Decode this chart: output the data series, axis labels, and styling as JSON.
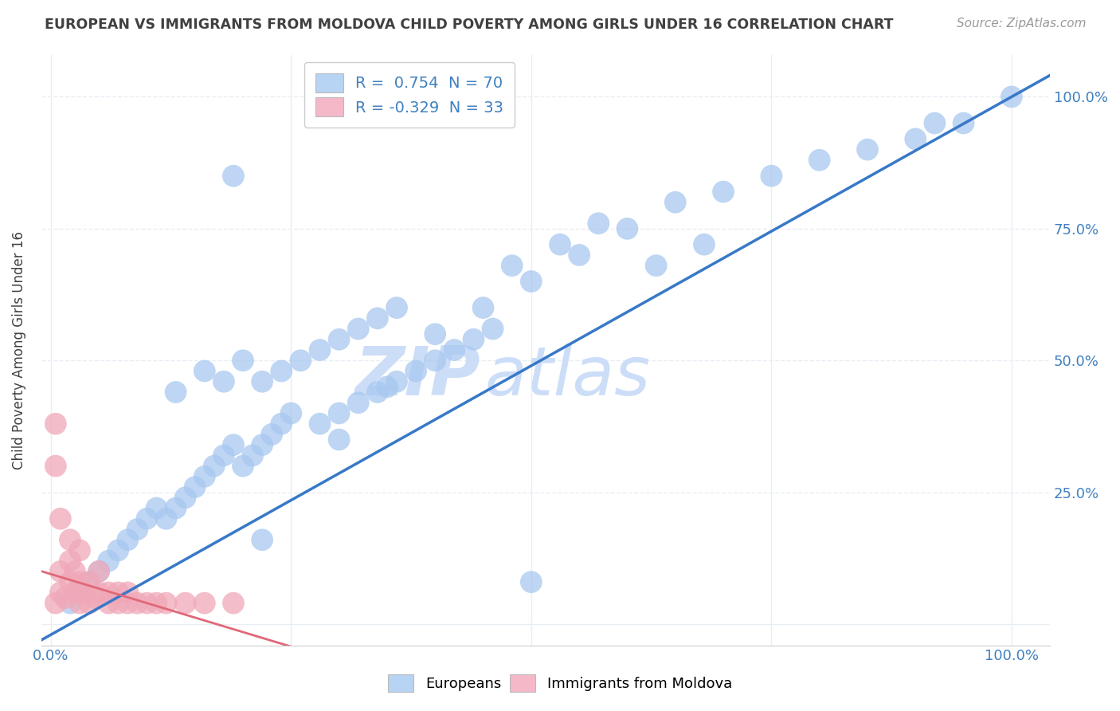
{
  "title": "EUROPEAN VS IMMIGRANTS FROM MOLDOVA CHILD POVERTY AMONG GIRLS UNDER 16 CORRELATION CHART",
  "source": "Source: ZipAtlas.com",
  "ylabel": "Child Poverty Among Girls Under 16",
  "r_european": 0.754,
  "n_european": 70,
  "r_moldova": -0.329,
  "n_moldova": 33,
  "blue_color": "#a8c8f0",
  "pink_color": "#f0a8b8",
  "blue_line_color": "#3878c8",
  "pink_line_color": "#e06878",
  "legend_blue_fill": "#b8d4f4",
  "legend_pink_fill": "#f4b8c8",
  "watermark_zip": "ZIP",
  "watermark_atlas": "atlas",
  "watermark_color": "#ccddf8",
  "background_color": "#ffffff",
  "title_color": "#404040",
  "axis_label_color": "#4080c0",
  "grid_color": "#e8eef4",
  "blue_x": [
    0.02,
    0.03,
    0.04,
    0.05,
    0.06,
    0.07,
    0.08,
    0.09,
    0.1,
    0.11,
    0.12,
    0.13,
    0.14,
    0.15,
    0.16,
    0.17,
    0.18,
    0.19,
    0.2,
    0.21,
    0.22,
    0.23,
    0.24,
    0.25,
    0.13,
    0.16,
    0.18,
    0.2,
    0.22,
    0.24,
    0.26,
    0.28,
    0.3,
    0.32,
    0.34,
    0.36,
    0.28,
    0.3,
    0.32,
    0.34,
    0.36,
    0.38,
    0.4,
    0.42,
    0.44,
    0.46,
    0.3,
    0.35,
    0.4,
    0.45,
    0.5,
    0.55,
    0.6,
    0.65,
    0.7,
    0.75,
    0.8,
    0.85,
    0.9,
    0.95,
    0.19,
    0.48,
    0.53,
    0.57,
    0.63,
    0.68,
    1.0,
    0.92,
    0.5,
    0.22
  ],
  "blue_y": [
    0.04,
    0.06,
    0.08,
    0.1,
    0.12,
    0.14,
    0.16,
    0.18,
    0.2,
    0.22,
    0.2,
    0.22,
    0.24,
    0.26,
    0.28,
    0.3,
    0.32,
    0.34,
    0.3,
    0.32,
    0.34,
    0.36,
    0.38,
    0.4,
    0.44,
    0.48,
    0.46,
    0.5,
    0.46,
    0.48,
    0.5,
    0.52,
    0.54,
    0.56,
    0.58,
    0.6,
    0.38,
    0.4,
    0.42,
    0.44,
    0.46,
    0.48,
    0.5,
    0.52,
    0.54,
    0.56,
    0.35,
    0.45,
    0.55,
    0.6,
    0.65,
    0.7,
    0.75,
    0.8,
    0.82,
    0.85,
    0.88,
    0.9,
    0.92,
    0.95,
    0.85,
    0.68,
    0.72,
    0.76,
    0.68,
    0.72,
    1.0,
    0.95,
    0.08,
    0.16
  ],
  "pink_x": [
    0.005,
    0.01,
    0.01,
    0.015,
    0.02,
    0.02,
    0.025,
    0.025,
    0.03,
    0.03,
    0.035,
    0.04,
    0.04,
    0.045,
    0.05,
    0.05,
    0.06,
    0.06,
    0.07,
    0.07,
    0.08,
    0.08,
    0.09,
    0.1,
    0.11,
    0.12,
    0.14,
    0.16,
    0.005,
    0.01,
    0.02,
    0.03,
    0.19
  ],
  "pink_y": [
    0.04,
    0.06,
    0.1,
    0.05,
    0.08,
    0.12,
    0.06,
    0.1,
    0.04,
    0.08,
    0.06,
    0.04,
    0.08,
    0.05,
    0.06,
    0.1,
    0.04,
    0.06,
    0.04,
    0.06,
    0.04,
    0.06,
    0.04,
    0.04,
    0.04,
    0.04,
    0.04,
    0.04,
    0.3,
    0.2,
    0.16,
    0.14,
    0.04
  ],
  "pink_outlier_x": [
    0.005
  ],
  "pink_outlier_y": [
    0.38
  ]
}
